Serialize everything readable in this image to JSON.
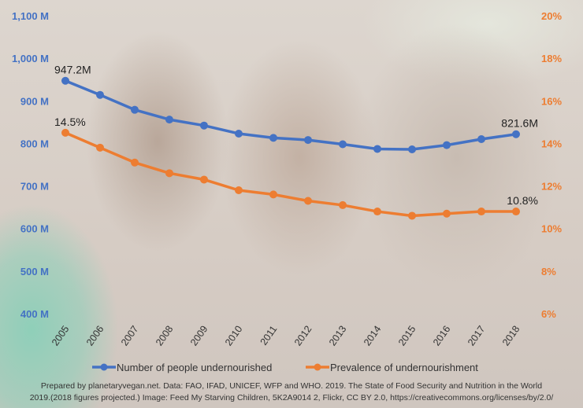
{
  "chart_data": {
    "type": "line",
    "categories": [
      "2005",
      "2006",
      "2007",
      "2008",
      "2009",
      "2010",
      "2011",
      "2012",
      "2013",
      "2014",
      "2015",
      "2016",
      "2017",
      "2018"
    ],
    "series": [
      {
        "name": "Number of people undernourished",
        "axis": "left",
        "color": "#4472c4",
        "values": [
          947.2,
          914,
          879,
          856,
          842,
          823,
          813,
          808,
          798,
          787,
          786,
          796,
          810,
          821.6
        ],
        "point_labels": {
          "first": "947.2M",
          "last": "821.6M"
        }
      },
      {
        "name": "Prevalence of undernourishment",
        "axis": "right",
        "color": "#ed7d31",
        "values": [
          14.5,
          13.8,
          13.1,
          12.6,
          12.3,
          11.8,
          11.6,
          11.3,
          11.1,
          10.8,
          10.6,
          10.7,
          10.8,
          10.8
        ],
        "point_labels": {
          "first": "14.5%",
          "last": "10.8%"
        }
      }
    ],
    "left_axis": {
      "ylim": [
        400,
        1100
      ],
      "ticks": [
        "400 M",
        "500 M",
        "600 M",
        "700 M",
        "800 M",
        "900 M",
        "1,000 M",
        "1,100 M"
      ],
      "tick_values": [
        400,
        500,
        600,
        700,
        800,
        900,
        1000,
        1100
      ]
    },
    "right_axis": {
      "ylim": [
        6,
        20
      ],
      "ticks": [
        "6%",
        "8%",
        "10%",
        "12%",
        "14%",
        "16%",
        "18%",
        "20%"
      ],
      "tick_values": [
        6,
        8,
        10,
        12,
        14,
        16,
        18,
        20
      ]
    },
    "grid": false,
    "legend": "bottom"
  },
  "footer": {
    "line1": "Prepared by planetaryvegan.net. Data:  FAO, IFAD, UNICEF, WFP and WHO. 2019. The State of Food Security and Nutrition in the World",
    "line2": "2019.(2018 figures projected.) Image: Feed My Starving Children,  5K2A9014 2, Flickr, CC BY 2.0, https://creativecommons.org/licenses/by/2.0/"
  }
}
